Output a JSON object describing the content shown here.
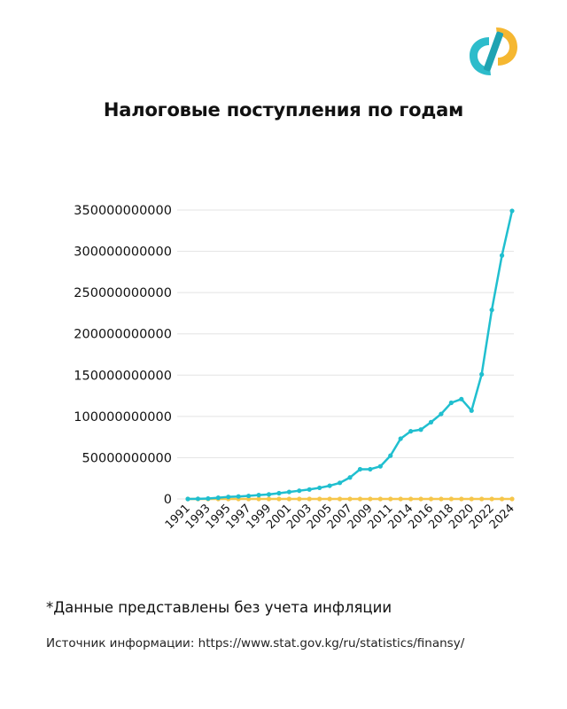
{
  "title": "Налоговые поступления по годам",
  "note": "*Данные представлены без учета инфляции",
  "source": "Источник информации: https://www.stat.gov.kg/ru/statistics/finansy/",
  "colors": {
    "series_main": "#20bfcf",
    "series_secondary": "#f6c64a",
    "grid": "#e3e3e3",
    "logo_teal": "#2dbccb",
    "logo_yellow": "#f5b731"
  },
  "chart_data": {
    "type": "line",
    "title": "Налоговые поступления по годам",
    "xlabel": "",
    "ylabel": "",
    "ylim": [
      0,
      350000000000
    ],
    "yticks": [
      0,
      50000000000,
      100000000000,
      150000000000,
      200000000000,
      250000000000,
      300000000000,
      350000000000
    ],
    "grid": true,
    "x": [
      "1991",
      "1992",
      "1993",
      "1994",
      "1995",
      "1996",
      "1997",
      "1998",
      "1999",
      "2000",
      "2001",
      "2002",
      "2003",
      "2004",
      "2005",
      "2006",
      "2007",
      "2008",
      "2009",
      "2010",
      "2011",
      "2013",
      "2014",
      "2015",
      "2016",
      "2017",
      "2018",
      "2019",
      "2020",
      "2021",
      "2022",
      "2023",
      "2024"
    ],
    "xtick_labels": [
      "1991",
      "",
      "1993",
      "",
      "1995",
      "",
      "1997",
      "",
      "1999",
      "",
      "2001",
      "",
      "2003",
      "",
      "2005",
      "",
      "2007",
      "",
      "2009",
      "",
      "2011",
      "",
      "2014",
      "",
      "2016",
      "",
      "2018",
      "",
      "2020",
      "",
      "2022",
      "",
      "2024"
    ],
    "series": [
      {
        "color": "#20bfcf",
        "values": [
          0,
          200000000,
          500000000,
          1500000000,
          2500000000,
          3000000000,
          3700000000,
          4700000000,
          5500000000,
          7000000000,
          8500000000,
          10000000000,
          11500000000,
          13500000000,
          16000000000,
          19500000000,
          26000000000,
          36000000000,
          36000000000,
          39500000000,
          52500000000,
          73000000000,
          82000000000,
          84000000000,
          93000000000,
          103000000000,
          116500000000,
          121000000000,
          107000000000,
          151000000000,
          229000000000,
          295000000000,
          349000000000
        ]
      },
      {
        "color": "#f6c64a",
        "values": [
          0,
          0,
          0,
          0,
          0,
          0,
          0,
          0,
          0,
          0,
          0,
          0,
          0,
          0,
          0,
          0,
          0,
          0,
          0,
          0,
          0,
          0,
          0,
          0,
          0,
          0,
          0,
          0,
          0,
          0,
          0,
          0,
          0
        ]
      }
    ]
  }
}
